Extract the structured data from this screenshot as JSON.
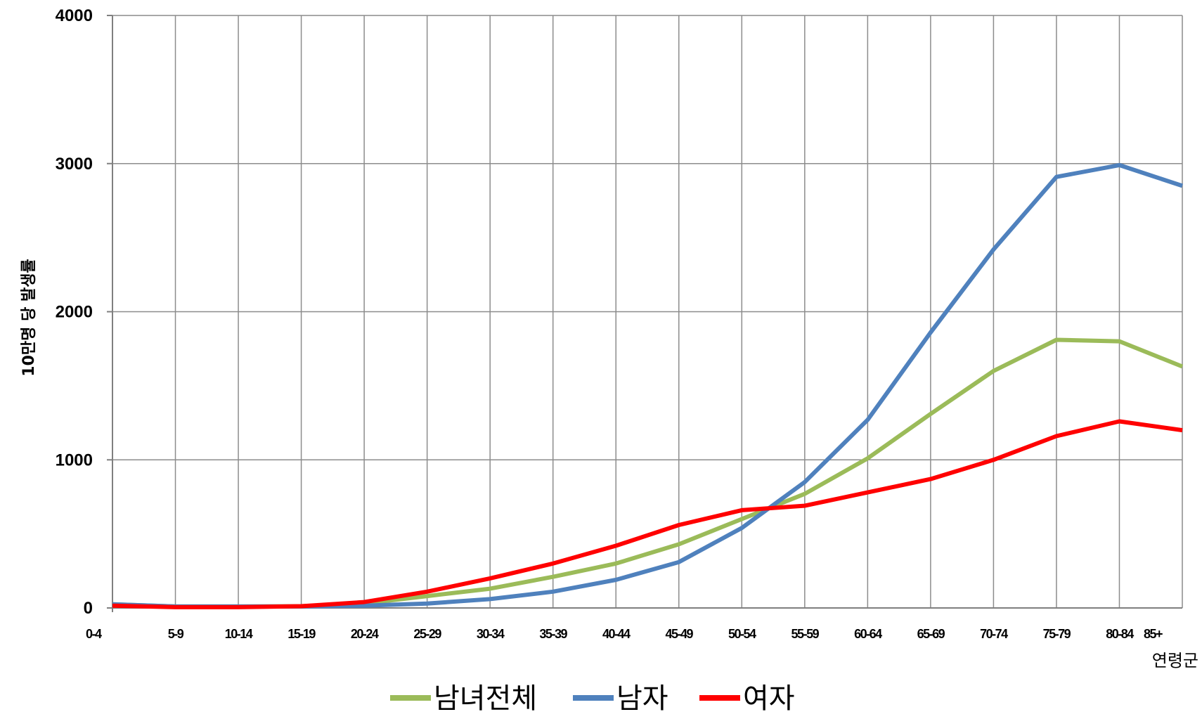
{
  "chart_data": {
    "type": "line",
    "title": "",
    "xlabel": "연령군",
    "ylabel": "10만명 당 발생률",
    "ylim": [
      0,
      4000
    ],
    "yticks": [
      0,
      1000,
      2000,
      3000,
      4000
    ],
    "grid": true,
    "legend_position": "bottom",
    "categories": [
      "0-4",
      "5-9",
      "10-14",
      "15-19",
      "20-24",
      "25-29",
      "30-34",
      "35-39",
      "40-44",
      "45-49",
      "50-54",
      "55-59",
      "60-64",
      "65-69",
      "70-74",
      "75-79",
      "80-84",
      "85+"
    ],
    "series": [
      {
        "name": "남녀전체",
        "color": "#9bbb59",
        "values": [
          25,
          10,
          10,
          12,
          30,
          80,
          130,
          210,
          300,
          430,
          600,
          770,
          1010,
          1310,
          1600,
          1810,
          1800,
          1630
        ]
      },
      {
        "name": "남자",
        "color": "#4f81bd",
        "values": [
          25,
          10,
          10,
          10,
          15,
          30,
          60,
          110,
          190,
          310,
          540,
          850,
          1270,
          1860,
          2420,
          2910,
          2990,
          2850
        ]
      },
      {
        "name": "여자",
        "color": "#ff0000",
        "values": [
          15,
          5,
          5,
          12,
          40,
          110,
          200,
          300,
          420,
          560,
          660,
          690,
          780,
          870,
          1000,
          1160,
          1260,
          1200
        ]
      }
    ]
  }
}
